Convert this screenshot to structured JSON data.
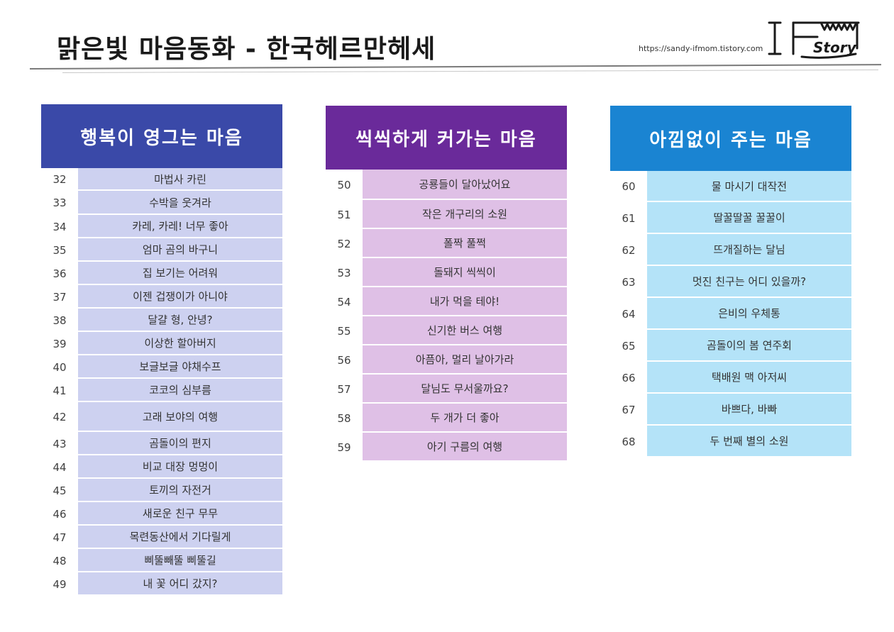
{
  "header": {
    "title": "맑은빛 마음동화 - 한국헤르만헤세",
    "url": "https://sandy-ifmom.tistory.com",
    "logo_text": "Story",
    "logo_letters": "IF"
  },
  "panels": [
    {
      "title": "행복이 영그는 마음",
      "color": "#3a49a8",
      "items": [
        {
          "num": "32",
          "title": "마법사 카린"
        },
        {
          "num": "33",
          "title": "수박을 웃겨라"
        },
        {
          "num": "34",
          "title": "카레, 카레! 너무 좋아"
        },
        {
          "num": "35",
          "title": "엄마 곰의 바구니"
        },
        {
          "num": "36",
          "title": "집 보기는 어려워"
        },
        {
          "num": "37",
          "title": "이젠 겁쟁이가 아니야"
        },
        {
          "num": "38",
          "title": "달걀 형, 안녕?"
        },
        {
          "num": "39",
          "title": "이상한 할아버지"
        },
        {
          "num": "40",
          "title": "보글보글 야채수프"
        },
        {
          "num": "41",
          "title": "코코의 심부름"
        },
        {
          "num": "42",
          "title": "고래 보야의 여행"
        },
        {
          "num": "43",
          "title": "곰돌이의 편지"
        },
        {
          "num": "44",
          "title": "비교 대장 멍멍이"
        },
        {
          "num": "45",
          "title": "토끼의 자전거"
        },
        {
          "num": "46",
          "title": "새로운 친구 무무"
        },
        {
          "num": "47",
          "title": "목련동산에서 기다릴게"
        },
        {
          "num": "48",
          "title": "삐뚤빼뚤 삐뚤길"
        },
        {
          "num": "49",
          "title": "내 꽃 어디 갔지?"
        }
      ]
    },
    {
      "title": "씩씩하게 커가는 마음",
      "color": "#6a2a9a",
      "items": [
        {
          "num": "50",
          "title": "공룡들이 달아났어요"
        },
        {
          "num": "51",
          "title": "작은 개구리의 소원"
        },
        {
          "num": "52",
          "title": "폴짝 풀쩍"
        },
        {
          "num": "53",
          "title": "돌돼지 씩씩이"
        },
        {
          "num": "54",
          "title": "내가 먹을 테야!"
        },
        {
          "num": "55",
          "title": "신기한 버스 여행"
        },
        {
          "num": "56",
          "title": "아픔아, 멀리 날아가라"
        },
        {
          "num": "57",
          "title": "달님도 무서울까요?"
        },
        {
          "num": "58",
          "title": "두 개가 더 좋아"
        },
        {
          "num": "59",
          "title": "아기 구름의 여행"
        }
      ]
    },
    {
      "title": "아낌없이 주는 마음",
      "color": "#1a84d2",
      "items": [
        {
          "num": "60",
          "title": "물 마시기 대작전"
        },
        {
          "num": "61",
          "title": "딸꿀딸꿀 꿀꿀이"
        },
        {
          "num": "62",
          "title": "뜨개질하는 달님"
        },
        {
          "num": "63",
          "title": "멋진 친구는 어디 있을까?"
        },
        {
          "num": "64",
          "title": "은비의 우체통"
        },
        {
          "num": "65",
          "title": "곰돌이의 봄 연주회"
        },
        {
          "num": "66",
          "title": "택배원 맥 아저씨"
        },
        {
          "num": "67",
          "title": "바쁘다, 바빠"
        },
        {
          "num": "68",
          "title": "두 번째 별의 소원"
        }
      ]
    }
  ]
}
